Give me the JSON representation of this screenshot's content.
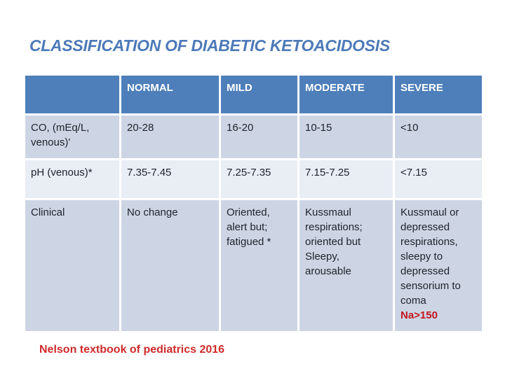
{
  "slide": {
    "title": "CLASSIFICATION OF DIABETIC KETOACIDOSIS",
    "source": "Nelson textbook of pediatrics 2016"
  },
  "colors": {
    "title_blue": "#4d7ab8",
    "header_bg": "#4e7fba",
    "header_text": "#ffffff",
    "band_dark": "#cdd5e4",
    "band_light": "#e9edf4",
    "body_text": "#20242e",
    "accent_red": "#c3161c",
    "source_red": "#cf2b2b",
    "background": "#ffffff"
  },
  "table": {
    "headers": [
      "",
      "NORMAL",
      "MILD",
      "MODERATE",
      "SEVERE"
    ],
    "rows": [
      {
        "label": "CO, (mEq/L, venous)'",
        "cells": [
          "20-28",
          "16-20",
          "10-15",
          "<10"
        ]
      },
      {
        "label": "pH (venous)*",
        "cells": [
          "7.35-7.45",
          "7.25-7.35",
          "7.15-7.25",
          "<7.15"
        ]
      },
      {
        "label": "Clinical",
        "cells": [
          "No change",
          "Oriented, alert but; fatigued *",
          "Kussmaul respirations; oriented but Sleepy, arousable",
          "Kussmaul or depressed respirations, sleepy to depressed sensorium to coma"
        ],
        "severe_extra": "Na>150"
      }
    ]
  }
}
